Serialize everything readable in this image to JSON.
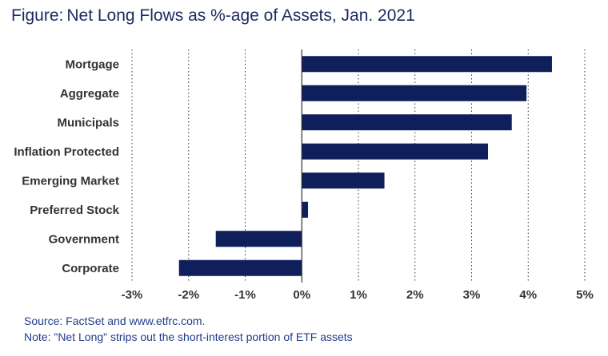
{
  "header": {
    "prefix": "Figure:",
    "title": "Net Long Flows as %-age of Assets, Jan. 2021"
  },
  "footer": {
    "source": "Source: FactSet and www.etfrc.com.",
    "note": "Note: \"Net Long\" strips out the short-interest portion of ETF assets"
  },
  "colors": {
    "bar": "#0f1f5c",
    "title": "#1a2a5e",
    "notes": "#1f3c88"
  },
  "chart_data": {
    "type": "bar",
    "orientation": "horizontal",
    "categories": [
      "Mortgage",
      "Aggregate",
      "Municipals",
      "Inflation Protected",
      "Emerging Market",
      "Preferred Stock",
      "Government",
      "Corporate"
    ],
    "values": [
      4.42,
      3.97,
      3.71,
      3.29,
      1.46,
      0.11,
      -1.52,
      -2.17
    ],
    "unit": "%",
    "xlim": [
      -3,
      5
    ],
    "xticks": [
      -3,
      -2,
      -1,
      0,
      1,
      2,
      3,
      4,
      5
    ],
    "xtick_labels": [
      "-3%",
      "-2%",
      "-1%",
      "0%",
      "1%",
      "2%",
      "3%",
      "4%",
      "5%"
    ],
    "grid": "vertical dotted",
    "legend": "none"
  }
}
